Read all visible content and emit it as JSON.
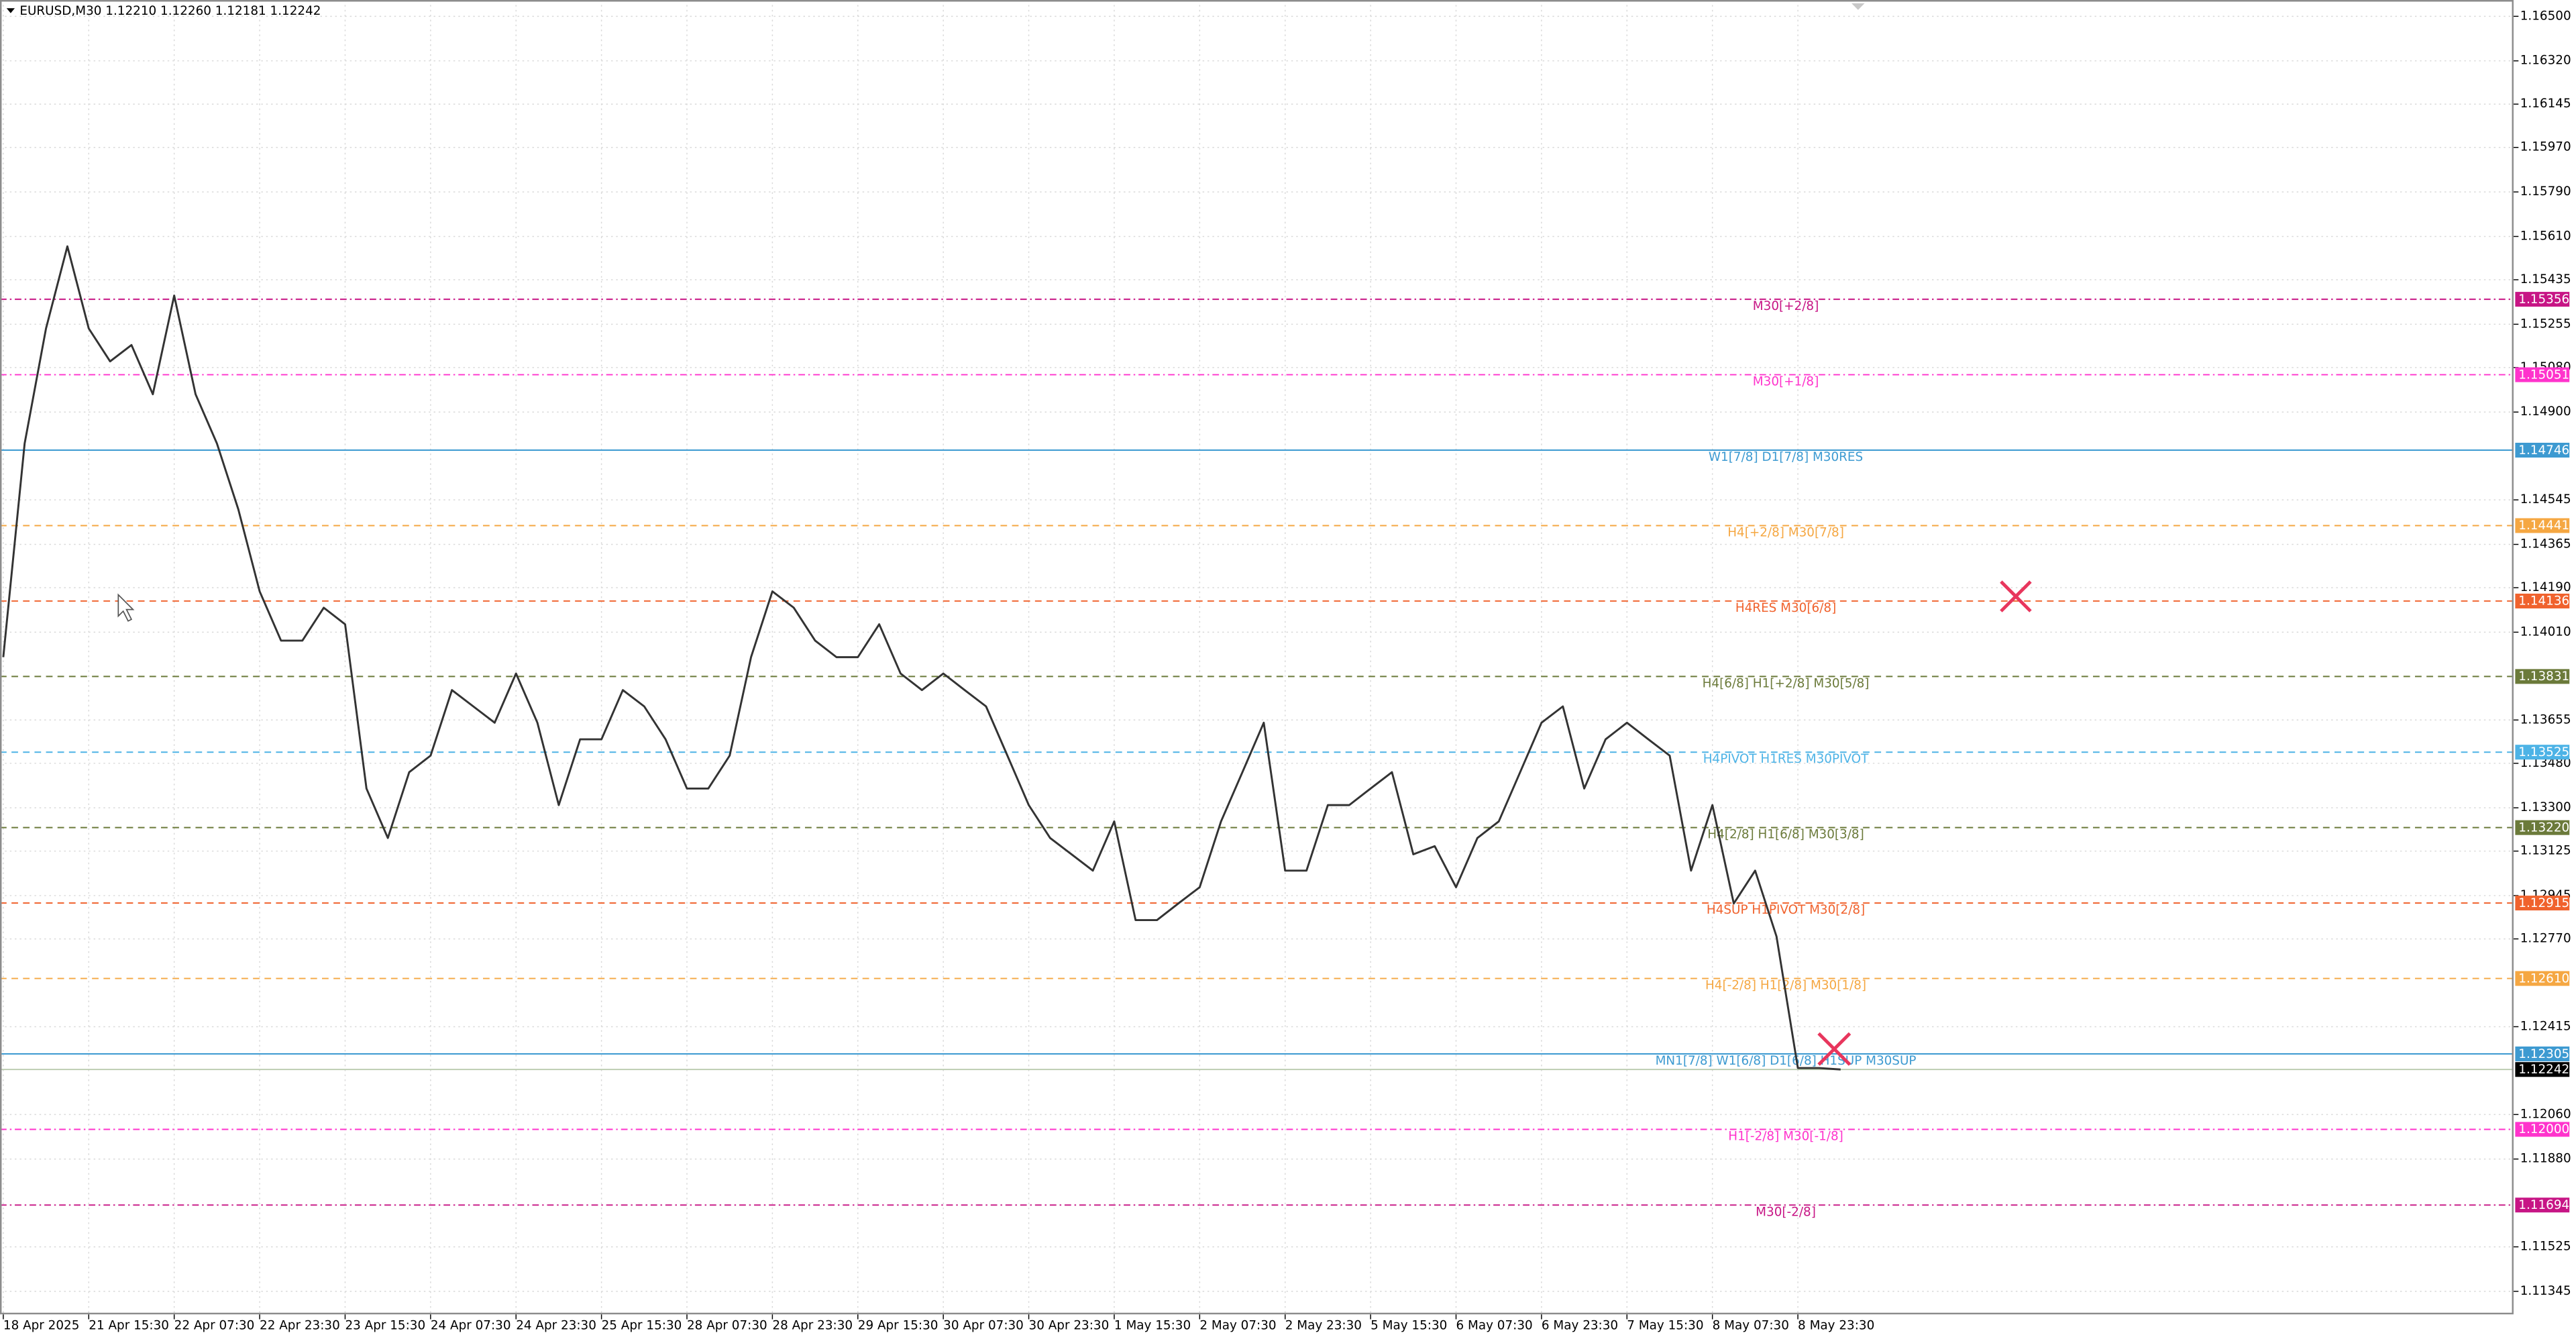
{
  "chart_data": {
    "type": "line",
    "title": "EURUSD,M30  1.12210 1.12260 1.12181 1.12242",
    "series": [
      {
        "name": "EURUSD",
        "color": "#333333",
        "values": [
          1.13909,
          1.14773,
          1.15238,
          1.1557,
          1.15238,
          1.15105,
          1.15171,
          1.14972,
          1.15371,
          1.14972,
          1.14773,
          1.14507,
          1.14175,
          1.13976,
          1.13976,
          1.14109,
          1.14042,
          1.13378,
          1.13178,
          1.13444,
          1.13511,
          1.13776,
          1.1371,
          1.13644,
          1.13843,
          1.13644,
          1.13311,
          1.13577,
          1.13577,
          1.13776,
          1.1371,
          1.13577,
          1.13378,
          1.13378,
          1.13511,
          1.13909,
          1.14175,
          1.14109,
          1.13976,
          1.13909,
          1.13909,
          1.14042,
          1.13843,
          1.13776,
          1.13843,
          1.13776,
          1.1371,
          1.13511,
          1.13311,
          1.13178,
          1.13112,
          1.13046,
          1.13245,
          1.12846,
          1.12846,
          1.12913,
          1.12979,
          1.13245,
          1.13444,
          1.13644,
          1.13046,
          1.13046,
          1.13311,
          1.13311,
          1.13378,
          1.13444,
          1.13112,
          1.13145,
          1.12979,
          1.13178,
          1.13245,
          1.13444,
          1.13644,
          1.1371,
          1.13378,
          1.13577,
          1.13644,
          1.13577,
          1.13511,
          1.13046,
          1.13311,
          1.12913,
          1.13046,
          1.1278,
          1.12248,
          1.12248,
          1.12242
        ]
      }
    ],
    "xlim": [
      0,
      117.5
    ],
    "xticks": [
      {
        "value": 0,
        "label": "18 Apr 2025"
      },
      {
        "value": 4,
        "label": "21 Apr 15:30"
      },
      {
        "value": 8,
        "label": "22 Apr 07:30"
      },
      {
        "value": 12,
        "label": "22 Apr 23:30"
      },
      {
        "value": 16,
        "label": "23 Apr 15:30"
      },
      {
        "value": 20,
        "label": "24 Apr 07:30"
      },
      {
        "value": 24,
        "label": "24 Apr 23:30"
      },
      {
        "value": 28,
        "label": "25 Apr 15:30"
      },
      {
        "value": 32,
        "label": "28 Apr 07:30"
      },
      {
        "value": 36,
        "label": "28 Apr 23:30"
      },
      {
        "value": 40,
        "label": "29 Apr 15:30"
      },
      {
        "value": 44,
        "label": "30 Apr 07:30"
      },
      {
        "value": 48,
        "label": "30 Apr 23:30"
      },
      {
        "value": 52,
        "label": "1 May 15:30"
      },
      {
        "value": 56,
        "label": "2 May 07:30"
      },
      {
        "value": 60,
        "label": "2 May 23:30"
      },
      {
        "value": 64,
        "label": "5 May 15:30"
      },
      {
        "value": 68,
        "label": "6 May 07:30"
      },
      {
        "value": 72,
        "label": "6 May 23:30"
      },
      {
        "value": 76,
        "label": "7 May 15:30"
      },
      {
        "value": 80,
        "label": "8 May 07:30"
      },
      {
        "value": 84,
        "label": "8 May 23:30"
      }
    ],
    "ylim": [
      1.11252,
      1.16566
    ],
    "yticks": [
      {
        "value": 1.165,
        "label": "1.16500"
      },
      {
        "value": 1.1632,
        "label": "1.16320"
      },
      {
        "value": 1.16145,
        "label": "1.16145"
      },
      {
        "value": 1.1597,
        "label": "1.15970"
      },
      {
        "value": 1.1579,
        "label": "1.15790"
      },
      {
        "value": 1.1561,
        "label": "1.15610"
      },
      {
        "value": 1.15435,
        "label": "1.15435"
      },
      {
        "value": 1.15255,
        "label": "1.15255"
      },
      {
        "value": 1.1508,
        "label": "1.15080"
      },
      {
        "value": 1.149,
        "label": "1.14900"
      },
      {
        "value": 1.14545,
        "label": "1.14545"
      },
      {
        "value": 1.14365,
        "label": "1.14365"
      },
      {
        "value": 1.1419,
        "label": "1.14190"
      },
      {
        "value": 1.1401,
        "label": "1.14010"
      },
      {
        "value": 1.13655,
        "label": "1.13655"
      },
      {
        "value": 1.1348,
        "label": "1.13480"
      },
      {
        "value": 1.133,
        "label": "1.13300"
      },
      {
        "value": 1.13125,
        "label": "1.13125"
      },
      {
        "value": 1.12945,
        "label": "1.12945"
      },
      {
        "value": 1.1277,
        "label": "1.12770"
      },
      {
        "value": 1.12415,
        "label": "1.12415"
      },
      {
        "value": 1.1206,
        "label": "1.12060"
      },
      {
        "value": 1.1188,
        "label": "1.11880"
      },
      {
        "value": 1.11525,
        "label": "1.11525"
      },
      {
        "value": 1.11345,
        "label": "1.11345"
      }
    ],
    "grid": true,
    "levels": [
      {
        "price": 1.15356,
        "tag": "1.15356",
        "label": "M30[+2/8]",
        "color": "#c71585",
        "style": "dashdot"
      },
      {
        "price": 1.15051,
        "tag": "1.15051",
        "label": "M30[+1/8]",
        "color": "#ff33cc",
        "style": "dashdot"
      },
      {
        "price": 1.14746,
        "tag": "1.14746",
        "label": "W1[7/8] D1[7/8] M30RES",
        "color": "#3d9ad1",
        "style": "solid"
      },
      {
        "price": 1.14441,
        "tag": "1.14441",
        "label": "H4[+2/8] M30[7/8]",
        "color": "#f5a742",
        "style": "dash"
      },
      {
        "price": 1.14136,
        "tag": "1.14136",
        "label": "H4RES M30[6/8]",
        "color": "#f0622d",
        "style": "dash"
      },
      {
        "price": 1.13831,
        "tag": "1.13831",
        "label": "H4[6/8] H1[+2/8] M30[5/8]",
        "color": "#6b7a3a",
        "style": "dash"
      },
      {
        "price": 1.13525,
        "tag": "1.13525",
        "label": "H4PIVOT H1RES M30PIVOT",
        "color": "#4db3e6",
        "style": "dash"
      },
      {
        "price": 1.1322,
        "tag": "1.13220",
        "label": "H4[2/8] H1[6/8] M30[3/8]",
        "color": "#6b7a3a",
        "style": "dash"
      },
      {
        "price": 1.12915,
        "tag": "1.12915",
        "label": "H4SUP H1PIVOT M30[2/8]",
        "color": "#f0622d",
        "style": "dash"
      },
      {
        "price": 1.1261,
        "tag": "1.12610",
        "label": "H4[-2/8] H1[2/8] M30[1/8]",
        "color": "#f5a742",
        "style": "dash"
      },
      {
        "price": 1.12305,
        "tag": "1.12305",
        "label": "MN1[7/8] W1[6/8] D1[6/8] H1SUP M30SUP",
        "color": "#3d9ad1",
        "style": "solid"
      },
      {
        "price": 1.12,
        "tag": "1.12000",
        "label": "H1[-2/8] M30[-1/8]",
        "color": "#ff33cc",
        "style": "dashdot"
      },
      {
        "price": 1.11694,
        "tag": "1.11694",
        "label": "M30[-2/8]",
        "color": "#c71585",
        "style": "dashdot"
      }
    ],
    "last_price": {
      "price": 1.12242,
      "tag": "1.12242",
      "color": "#000000"
    }
  }
}
